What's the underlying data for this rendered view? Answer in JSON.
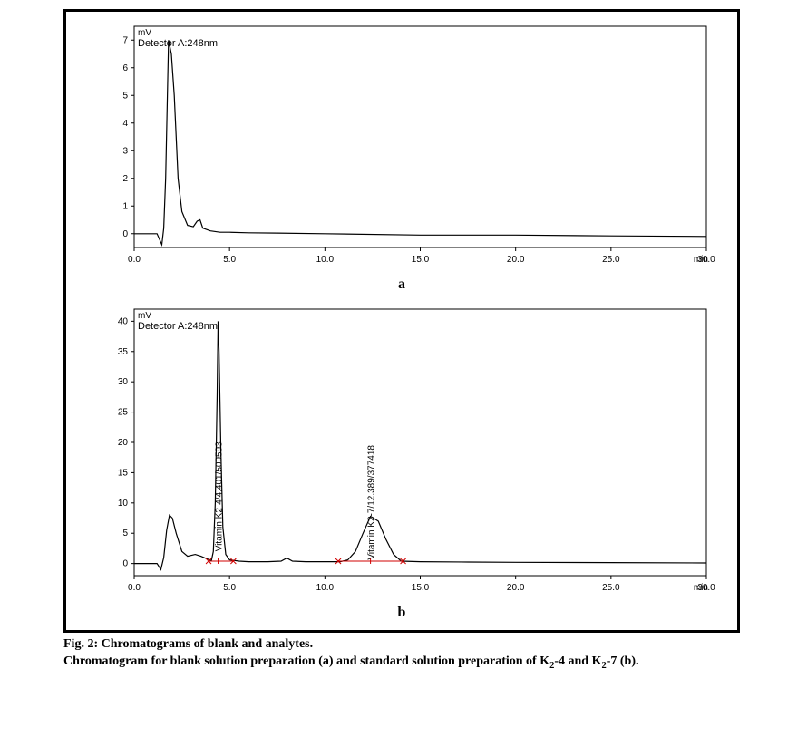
{
  "figure": {
    "number": "Fig. 2",
    "title": "Chromatograms of blank and analytes.",
    "subtitle_prefix": "Chromatogram for blank solution preparation (a) and standard solution preparation of K",
    "sub1": "2",
    "mid1": "-4 and K",
    "sub2": "2",
    "suffix": "-7 (b)."
  },
  "panel_a": {
    "label": "a",
    "detector_label": "Detector A:248nm",
    "y_unit": "mV",
    "x_unit": "min",
    "x_min": 0.0,
    "x_max": 30.0,
    "x_tick_step": 5.0,
    "y_min": -0.5,
    "y_max": 7.5,
    "y_ticks": [
      0,
      1,
      2,
      3,
      4,
      5,
      6,
      7
    ],
    "trace_color": "#000000",
    "background_color": "#ffffff",
    "axis_color": "#000000",
    "trace": [
      [
        0.0,
        0.0
      ],
      [
        1.2,
        0.0
      ],
      [
        1.45,
        -0.4
      ],
      [
        1.55,
        0.2
      ],
      [
        1.65,
        2.0
      ],
      [
        1.8,
        7.0
      ],
      [
        1.95,
        6.5
      ],
      [
        2.1,
        5.0
      ],
      [
        2.3,
        2.0
      ],
      [
        2.5,
        0.8
      ],
      [
        2.8,
        0.3
      ],
      [
        3.1,
        0.25
      ],
      [
        3.3,
        0.45
      ],
      [
        3.45,
        0.5
      ],
      [
        3.6,
        0.2
      ],
      [
        4.0,
        0.1
      ],
      [
        4.5,
        0.05
      ],
      [
        5.0,
        0.05
      ],
      [
        6.0,
        0.03
      ],
      [
        7.5,
        0.02
      ],
      [
        10.0,
        0.0
      ],
      [
        15.0,
        -0.05
      ],
      [
        20.0,
        -0.05
      ],
      [
        25.0,
        -0.08
      ],
      [
        30.0,
        -0.1
      ]
    ]
  },
  "panel_b": {
    "label": "b",
    "detector_label": "Detector A:248nm",
    "y_unit": "mV",
    "x_unit": "min",
    "x_min": 0.0,
    "x_max": 30.0,
    "x_tick_step": 5.0,
    "y_min": -2,
    "y_max": 42,
    "y_ticks": [
      0,
      5,
      10,
      15,
      20,
      25,
      30,
      35,
      40
    ],
    "trace_color": "#000000",
    "background_color": "#ffffff",
    "axis_color": "#000000",
    "marker_color": "#d00000",
    "trace": [
      [
        0.0,
        0.0
      ],
      [
        1.2,
        0.0
      ],
      [
        1.4,
        -1.0
      ],
      [
        1.55,
        1.0
      ],
      [
        1.7,
        5.5
      ],
      [
        1.85,
        8.0
      ],
      [
        2.0,
        7.5
      ],
      [
        2.2,
        5.0
      ],
      [
        2.5,
        2.0
      ],
      [
        2.8,
        1.2
      ],
      [
        3.2,
        1.5
      ],
      [
        3.5,
        1.2
      ],
      [
        3.8,
        0.8
      ],
      [
        4.05,
        0.5
      ],
      [
        4.15,
        2.0
      ],
      [
        4.25,
        10.0
      ],
      [
        4.35,
        28.0
      ],
      [
        4.4,
        40.0
      ],
      [
        4.45,
        35.0
      ],
      [
        4.55,
        18.0
      ],
      [
        4.65,
        6.0
      ],
      [
        4.8,
        1.5
      ],
      [
        5.0,
        0.6
      ],
      [
        5.5,
        0.4
      ],
      [
        6.0,
        0.3
      ],
      [
        7.0,
        0.3
      ],
      [
        7.7,
        0.4
      ],
      [
        8.0,
        0.9
      ],
      [
        8.3,
        0.4
      ],
      [
        9.0,
        0.3
      ],
      [
        10.0,
        0.3
      ],
      [
        10.8,
        0.3
      ],
      [
        11.2,
        0.6
      ],
      [
        11.6,
        2.0
      ],
      [
        12.0,
        5.0
      ],
      [
        12.39,
        7.8
      ],
      [
        12.8,
        7.0
      ],
      [
        13.2,
        4.0
      ],
      [
        13.6,
        1.5
      ],
      [
        14.0,
        0.4
      ],
      [
        15.0,
        0.3
      ],
      [
        17.5,
        0.25
      ],
      [
        20.0,
        0.2
      ],
      [
        25.0,
        0.15
      ],
      [
        30.0,
        0.1
      ]
    ],
    "peaks": [
      {
        "label": "Vitamin K2-4/4.401/509593",
        "x": 4.4,
        "base": [
          3.9,
          5.2
        ]
      },
      {
        "label": "Vitamin K2-7/12.389/377418",
        "x": 12.39,
        "base": [
          10.7,
          14.1
        ]
      }
    ]
  }
}
